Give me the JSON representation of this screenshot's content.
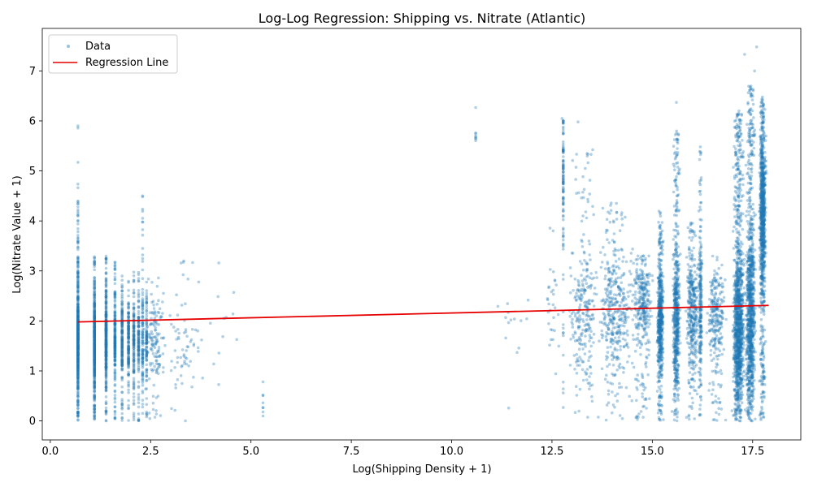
{
  "chart_data": {
    "type": "scatter",
    "title": "Log-Log Regression: Shipping vs. Nitrate (Atlantic)",
    "xlabel": "Log(Shipping Density + 1)",
    "ylabel": "Log(Nitrate Value + 1)",
    "xlim": [
      -0.2,
      18.7
    ],
    "ylim": [
      -0.38,
      7.85
    ],
    "xticks": [
      0.0,
      2.5,
      5.0,
      7.5,
      10.0,
      12.5,
      15.0,
      17.5
    ],
    "xtick_labels": [
      "0.0",
      "2.5",
      "5.0",
      "7.5",
      "10.0",
      "12.5",
      "15.0",
      "17.5"
    ],
    "yticks": [
      0,
      1,
      2,
      3,
      4,
      5,
      6,
      7
    ],
    "ytick_labels": [
      "0",
      "1",
      "2",
      "3",
      "4",
      "5",
      "6",
      "7"
    ],
    "grid": false,
    "legend": {
      "placement": "top-left",
      "entries": [
        "Data",
        "Regression Line"
      ]
    },
    "series": [
      {
        "name": "Data",
        "kind": "scatter",
        "color": "#1f77b4",
        "alpha": 0.35,
        "clusters": [
          {
            "x": 0.69,
            "xspread": 0.0,
            "ymin": 0.0,
            "ymax": 3.3,
            "ydense": 1.6,
            "n": 600
          },
          {
            "x": 0.69,
            "xspread": 0.0,
            "ymin": 3.3,
            "ymax": 5.9,
            "ydense": 4.0,
            "n": 30
          },
          {
            "x": 1.1,
            "xspread": 0.0,
            "ymin": 0.0,
            "ymax": 3.3,
            "ydense": 1.6,
            "n": 500
          },
          {
            "x": 1.39,
            "xspread": 0.0,
            "ymin": 0.0,
            "ymax": 3.3,
            "ydense": 1.6,
            "n": 350
          },
          {
            "x": 1.61,
            "xspread": 0.0,
            "ymin": 0.0,
            "ymax": 3.2,
            "ydense": 1.6,
            "n": 200
          },
          {
            "x": 1.79,
            "xspread": 0.0,
            "ymin": 0.0,
            "ymax": 3.0,
            "ydense": 1.6,
            "n": 180
          },
          {
            "x": 1.95,
            "xspread": 0.0,
            "ymin": 0.0,
            "ymax": 3.0,
            "ydense": 1.6,
            "n": 160
          },
          {
            "x": 2.08,
            "xspread": 0.0,
            "ymin": 0.0,
            "ymax": 3.0,
            "ydense": 1.6,
            "n": 140
          },
          {
            "x": 2.2,
            "xspread": 0.0,
            "ymin": 0.0,
            "ymax": 3.0,
            "ydense": 1.6,
            "n": 120
          },
          {
            "x": 2.3,
            "xspread": 0.0,
            "ymin": 0.0,
            "ymax": 4.8,
            "ydense": 1.6,
            "n": 110
          },
          {
            "x": 2.4,
            "xspread": 0.0,
            "ymin": 0.0,
            "ymax": 2.8,
            "ydense": 1.6,
            "n": 90
          },
          {
            "x": 2.6,
            "xspread": 0.35,
            "ymin": 0.0,
            "ymax": 3.0,
            "ydense": 1.6,
            "n": 140
          },
          {
            "x": 3.3,
            "xspread": 0.6,
            "ymin": 0.0,
            "ymax": 3.2,
            "ydense": 1.5,
            "n": 70
          },
          {
            "x": 4.3,
            "xspread": 0.7,
            "ymin": 0.5,
            "ymax": 3.7,
            "ydense": 2.0,
            "n": 12
          },
          {
            "x": 5.3,
            "xspread": 0.0,
            "ymin": 0.0,
            "ymax": 2.0,
            "ydense": 0.5,
            "n": 8
          },
          {
            "x": 10.6,
            "xspread": 0.0,
            "ymin": 5.4,
            "ymax": 6.3,
            "ydense": 5.6,
            "n": 8
          },
          {
            "x": 11.6,
            "xspread": 0.5,
            "ymin": 0.2,
            "ymax": 2.8,
            "ydense": 2.0,
            "n": 14
          },
          {
            "x": 12.5,
            "xspread": 0.25,
            "ymin": 0.5,
            "ymax": 3.9,
            "ydense": 2.2,
            "n": 30
          },
          {
            "x": 12.78,
            "xspread": 0.0,
            "ymin": 0.0,
            "ymax": 6.0,
            "ydense": 5.0,
            "n": 110
          },
          {
            "x": 13.3,
            "xspread": 0.5,
            "ymin": 0.0,
            "ymax": 5.5,
            "ydense": 2.1,
            "n": 260
          },
          {
            "x": 14.1,
            "xspread": 0.6,
            "ymin": 0.0,
            "ymax": 4.4,
            "ydense": 2.2,
            "n": 380
          },
          {
            "x": 14.75,
            "xspread": 0.3,
            "ymin": 0.0,
            "ymax": 3.3,
            "ydense": 2.4,
            "n": 300
          },
          {
            "x": 15.2,
            "xspread": 0.1,
            "ymin": 0.0,
            "ymax": 4.2,
            "ydense": 2.0,
            "n": 550
          },
          {
            "x": 15.6,
            "xspread": 0.12,
            "ymin": 0.0,
            "ymax": 5.8,
            "ydense": 2.0,
            "n": 550
          },
          {
            "x": 16.0,
            "xspread": 0.2,
            "ymin": 0.0,
            "ymax": 4.0,
            "ydense": 2.2,
            "n": 350
          },
          {
            "x": 16.2,
            "xspread": 0.05,
            "ymin": 0.0,
            "ymax": 5.5,
            "ydense": 2.3,
            "n": 220
          },
          {
            "x": 16.6,
            "xspread": 0.3,
            "ymin": 0.0,
            "ymax": 3.3,
            "ydense": 2.1,
            "n": 250
          },
          {
            "x": 17.15,
            "xspread": 0.18,
            "ymin": 0.0,
            "ymax": 6.2,
            "ydense": 1.8,
            "n": 1200
          },
          {
            "x": 17.45,
            "xspread": 0.15,
            "ymin": 0.0,
            "ymax": 6.7,
            "ydense": 2.0,
            "n": 1000
          },
          {
            "x": 17.75,
            "xspread": 0.1,
            "ymin": 0.0,
            "ymax": 6.5,
            "ydense": 4.2,
            "n": 900
          }
        ],
        "outliers": [
          {
            "x": 12.75,
            "y": 6.05
          },
          {
            "x": 17.3,
            "y": 7.33
          },
          {
            "x": 17.6,
            "y": 7.48
          },
          {
            "x": 17.55,
            "y": 7.0
          },
          {
            "x": 15.6,
            "y": 6.37
          },
          {
            "x": 0.69,
            "y": 5.9
          },
          {
            "x": 13.15,
            "y": 5.98
          }
        ]
      },
      {
        "name": "Regression Line",
        "kind": "line",
        "color": "#e60000",
        "x": [
          0.69,
          17.9
        ],
        "y": [
          1.98,
          2.31
        ]
      }
    ]
  }
}
